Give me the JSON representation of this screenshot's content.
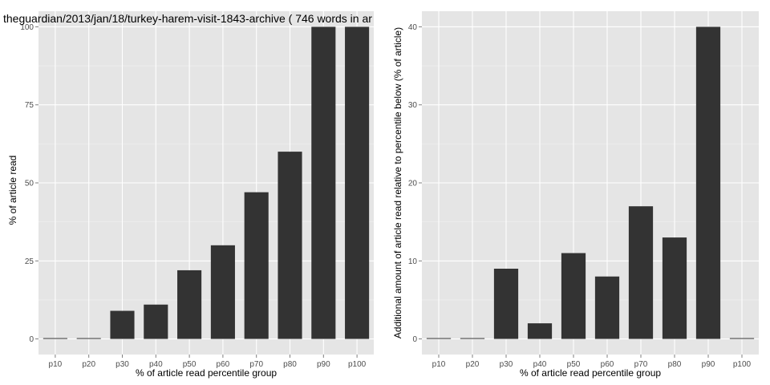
{
  "colors": {
    "panel_background": "#e5e5e5",
    "grid_major": "#ffffff",
    "grid_minor": "#f2f2f2",
    "bar_fill": "#333333",
    "tick_text": "#4d4d4d"
  },
  "chart_data": [
    {
      "type": "bar",
      "title": "theguardian/2013/jan/18/turkey-harem-visit-1843-archive ( 746 words in ar",
      "xlabel": "% of article read percentile group",
      "ylabel": "% of article read",
      "categories": [
        "p10",
        "p20",
        "p30",
        "p40",
        "p50",
        "p60",
        "p70",
        "p80",
        "p90",
        "p100"
      ],
      "values": [
        0,
        0,
        9,
        11,
        22,
        30,
        47,
        60,
        100,
        100
      ],
      "ylim": [
        -5,
        105
      ],
      "yticks": [
        0,
        25,
        50,
        75,
        100
      ],
      "grid": true
    },
    {
      "type": "bar",
      "title": "",
      "xlabel": "% of article read percentile group",
      "ylabel": "Additional amount of article read relative to percentile below (% of article)",
      "categories": [
        "p10",
        "p20",
        "p30",
        "p40",
        "p50",
        "p60",
        "p70",
        "p80",
        "p90",
        "p100"
      ],
      "values": [
        0,
        0,
        9,
        2,
        11,
        8,
        17,
        13,
        40,
        0
      ],
      "ylim": [
        -2,
        42
      ],
      "yticks": [
        0,
        10,
        20,
        30,
        40
      ],
      "grid": true
    }
  ]
}
